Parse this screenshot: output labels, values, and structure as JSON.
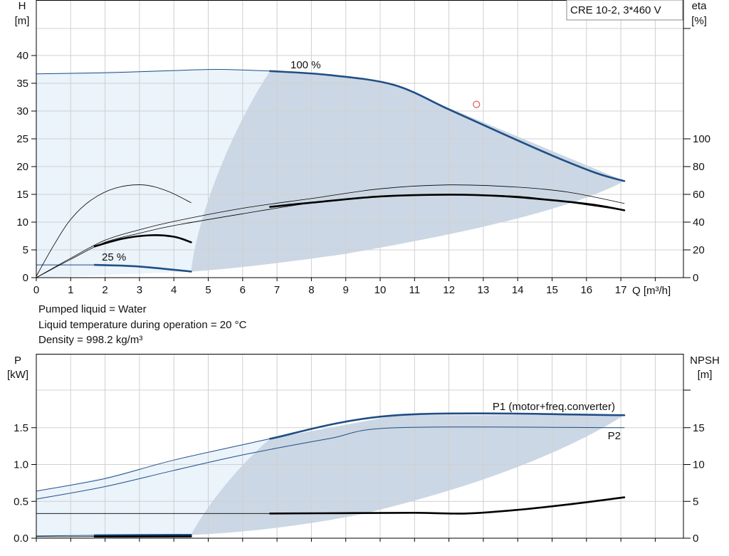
{
  "info": {
    "model": "CRE 10-2, 3*460 V",
    "lines": [
      "Pumped liquid = Water",
      "Liquid temperature during operation = 20 °C",
      "Density = 998.2 kg/m³"
    ]
  },
  "colors": {
    "band_dark": "#cbd7e4",
    "band_light": "#ebf3fb",
    "grid": "#d0d0d0",
    "blue": "#1f4e85",
    "black": "#000000",
    "dim": "#8a8a8a",
    "marker": "#e06050"
  },
  "chart_data": [
    {
      "type": "line",
      "title": "",
      "x_axis": {
        "label": "Q [m³/h]",
        "range": [
          0,
          18.5
        ],
        "ticks": [
          0,
          1,
          2,
          3,
          4,
          5,
          6,
          7,
          8,
          9,
          10,
          11,
          12,
          13,
          14,
          15,
          16,
          17
        ]
      },
      "y_axis_left": {
        "label_top": "H",
        "label_unit": "[m]",
        "range": [
          0,
          50
        ],
        "ticks": [
          0,
          5,
          10,
          15,
          20,
          25,
          30,
          35,
          40
        ]
      },
      "y_axis_right": {
        "label_top": "eta",
        "label_unit": "[%]",
        "range": [
          0,
          200
        ],
        "ticks": [
          0,
          20,
          40,
          60,
          80,
          100
        ]
      },
      "grid": true,
      "annotations": [
        "100 %",
        "25 %"
      ],
      "series": [
        {
          "id": "h_100",
          "axis": "left",
          "style": "thick-blue",
          "x": [
            6.8,
            8.5,
            10.4,
            12,
            13.5,
            15,
            16.3,
            17.1
          ],
          "y": [
            37.2,
            36.5,
            34.7,
            30.3,
            26.1,
            22.0,
            18.8,
            17.4
          ]
        },
        {
          "id": "h_100_thin",
          "axis": "left",
          "style": "thin-blue",
          "x": [
            0,
            2,
            4,
            5.3,
            6.8
          ],
          "y": [
            36.7,
            36.9,
            37.3,
            37.5,
            37.2
          ]
        },
        {
          "id": "h_25",
          "axis": "left",
          "style": "thick-blue",
          "x": [
            1.7,
            3,
            4.5
          ],
          "y": [
            2.3,
            2.0,
            1.1
          ]
        },
        {
          "id": "h_25_thin",
          "axis": "left",
          "style": "thin-blue",
          "x": [
            0,
            1.7
          ],
          "y": [
            2.3,
            2.3
          ]
        },
        {
          "id": "eta_thick",
          "axis": "right",
          "style": "thick-black",
          "x": [
            6.8,
            8,
            10,
            12,
            13.5,
            15,
            16.2,
            17.1
          ],
          "y": [
            51,
            54,
            58.5,
            59.8,
            58.8,
            55.8,
            52.5,
            48.5
          ]
        },
        {
          "id": "eta_thin_upper",
          "axis": "right",
          "style": "thin-black",
          "x": [
            0,
            1,
            2,
            3,
            4,
            6,
            8,
            10,
            12,
            14,
            15.5,
            17.1
          ],
          "y": [
            0,
            14,
            27,
            34.5,
            40.5,
            50,
            57,
            64,
            66.8,
            65.2,
            61.5,
            53.5
          ]
        },
        {
          "id": "eta_thin_lower",
          "axis": "right",
          "style": "thin-black",
          "x": [
            0,
            1,
            2,
            3,
            4,
            6,
            8,
            10,
            12,
            14,
            15.5,
            17.1
          ],
          "y": [
            0,
            13.2,
            25.5,
            32,
            37.5,
            46,
            53.8,
            58.5,
            59.8,
            58.6,
            54.2,
            48.5
          ]
        },
        {
          "id": "eta_25_thick",
          "axis": "right",
          "style": "thick-black",
          "x": [
            1.7,
            2.5,
            3.3,
            4,
            4.5
          ],
          "y": [
            22.5,
            28,
            30.5,
            29.5,
            25.5
          ]
        },
        {
          "id": "eta_hump",
          "axis": "right",
          "style": "thin-black",
          "x": [
            0,
            0.5,
            1,
            1.6,
            2.3,
            3.1,
            3.8,
            4.5
          ],
          "y": [
            1,
            23,
            42,
            56,
            64.5,
            66.8,
            62.5,
            54
          ]
        }
      ],
      "operating_point": {
        "x": 12.8,
        "y": 31.2,
        "axis": "left"
      }
    },
    {
      "type": "line",
      "title": "",
      "x_axis": {
        "range": [
          0,
          18.5
        ]
      },
      "y_axis_left": {
        "label_top": "P",
        "label_unit": "[kW]",
        "range": [
          0,
          2.0
        ],
        "ticks": [
          0.0,
          0.5,
          1.0,
          1.5
        ]
      },
      "y_axis_right": {
        "label_top": "NPSH",
        "label_unit": "[m]",
        "range": [
          0,
          20
        ],
        "ticks": [
          0,
          5,
          10,
          15
        ]
      },
      "grid": true,
      "series": [
        {
          "id": "p1_thick",
          "name": "P1 (motor+freq.converter)",
          "axis": "left",
          "style": "thick-blue",
          "x": [
            6.8,
            10.5,
            17.1
          ],
          "y": [
            1.35,
            1.67,
            1.67
          ]
        },
        {
          "id": "p1_thin",
          "axis": "left",
          "style": "thin-blue",
          "x": [
            0,
            2,
            4,
            6.8
          ],
          "y": [
            0.64,
            0.81,
            1.06,
            1.35
          ]
        },
        {
          "id": "p2",
          "name": "P2",
          "axis": "left",
          "style": "thin-blue",
          "x": [
            0,
            2,
            4,
            6,
            8.5,
            10.5,
            17.1
          ],
          "y": [
            0.53,
            0.7,
            0.92,
            1.13,
            1.35,
            1.5,
            1.5
          ]
        },
        {
          "id": "p_25",
          "axis": "left",
          "style": "thick-blue",
          "x": [
            1.7,
            4.5
          ],
          "y": [
            0.04,
            0.045
          ]
        },
        {
          "id": "p_25_thin",
          "axis": "left",
          "style": "thin-blue",
          "x": [
            0,
            1.7
          ],
          "y": [
            0.03,
            0.04
          ]
        },
        {
          "id": "npsh_thick",
          "axis": "right",
          "style": "thick-black",
          "x": [
            6.8,
            9,
            11,
            12.5,
            14,
            15.5,
            17.1
          ],
          "y": [
            3.35,
            3.4,
            3.45,
            3.35,
            3.85,
            4.6,
            5.55
          ]
        },
        {
          "id": "npsh_thin",
          "axis": "right",
          "style": "thin-black",
          "x": [
            0,
            6.8
          ],
          "y": [
            3.35,
            3.35
          ]
        },
        {
          "id": "npsh_25",
          "axis": "right",
          "style": "thick-black",
          "x": [
            1.7,
            4.5
          ],
          "y": [
            0.22,
            0.25
          ]
        },
        {
          "id": "npsh_25_thin",
          "axis": "right",
          "style": "thin-black",
          "x": [
            0,
            1.7
          ],
          "y": [
            0.2,
            0.22
          ]
        }
      ]
    }
  ]
}
